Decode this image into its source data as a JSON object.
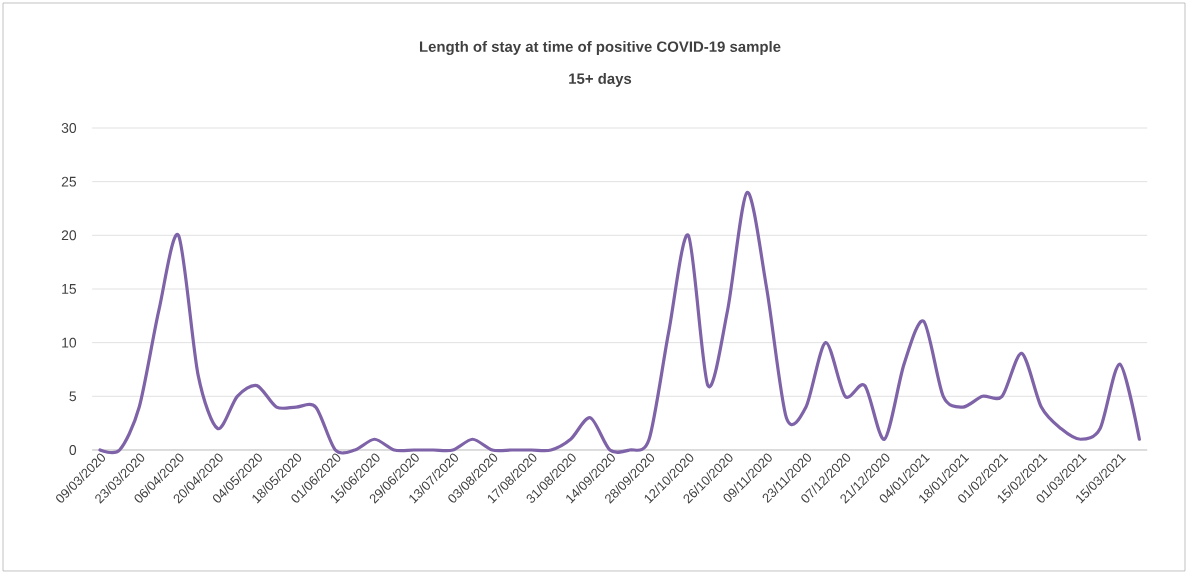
{
  "chart_data": {
    "type": "line",
    "title": "Length of stay at time of positive COVID-19 sample",
    "subtitle": "15+ days",
    "categories": [
      "09/03/2020",
      null,
      "23/03/2020",
      null,
      "06/04/2020",
      null,
      "20/04/2020",
      null,
      "04/05/2020",
      null,
      "18/05/2020",
      null,
      "01/06/2020",
      null,
      "15/06/2020",
      null,
      "29/06/2020",
      null,
      "13/07/2020",
      null,
      "03/08/2020",
      null,
      "17/08/2020",
      null,
      "31/08/2020",
      null,
      "14/09/2020",
      null,
      "28/09/2020",
      null,
      "12/10/2020",
      null,
      "26/10/2020",
      null,
      "09/11/2020",
      null,
      "23/11/2020",
      null,
      "07/12/2020",
      null,
      "21/12/2020",
      null,
      "04/01/2021",
      null,
      "18/01/2021",
      null,
      "01/02/2021",
      null,
      "15/02/2021",
      null,
      "01/03/2021",
      null,
      "15/03/2021",
      null
    ],
    "series": [
      {
        "color": "#7f63a8",
        "values": [
          0,
          0,
          4,
          13,
          20,
          7,
          2,
          5,
          6,
          4,
          4,
          4,
          0,
          0,
          1,
          0,
          0,
          0,
          0,
          1,
          0,
          0,
          0,
          0,
          1,
          3,
          0,
          0,
          1,
          11,
          20,
          6,
          13,
          24,
          15,
          3,
          4,
          10,
          5,
          6,
          1,
          8,
          12,
          5,
          4,
          5,
          5,
          9,
          4,
          2,
          1,
          2,
          8,
          1
        ]
      }
    ],
    "ylim": [
      0,
      30
    ],
    "yticks": [
      0,
      5,
      10,
      15,
      20,
      25,
      30
    ],
    "grid": "y",
    "marker": "none",
    "line_style": "solid"
  }
}
